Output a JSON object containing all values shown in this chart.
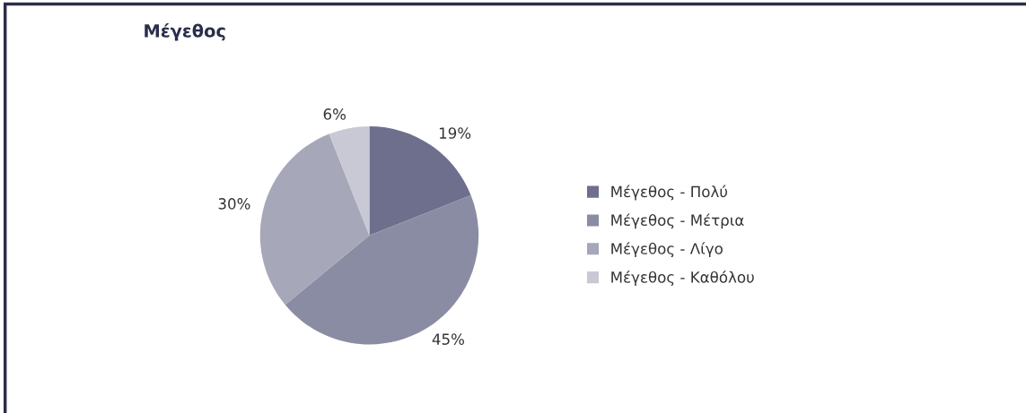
{
  "chart_data": {
    "type": "pie",
    "title": "Μέγεθος",
    "categories": [
      "Μέγεθος - Πολύ",
      "Μέγεθος - Μέτρια",
      "Μέγεθος - Λίγο",
      "Μέγεθος - Καθόλου"
    ],
    "values": [
      19,
      45,
      30,
      6
    ],
    "colors": [
      "#6e6f8c",
      "#8a8ca3",
      "#a6a7b8",
      "#c8c9d4"
    ],
    "value_labels": [
      "19%",
      "45%",
      "30%",
      "6%"
    ],
    "legend": "right"
  }
}
